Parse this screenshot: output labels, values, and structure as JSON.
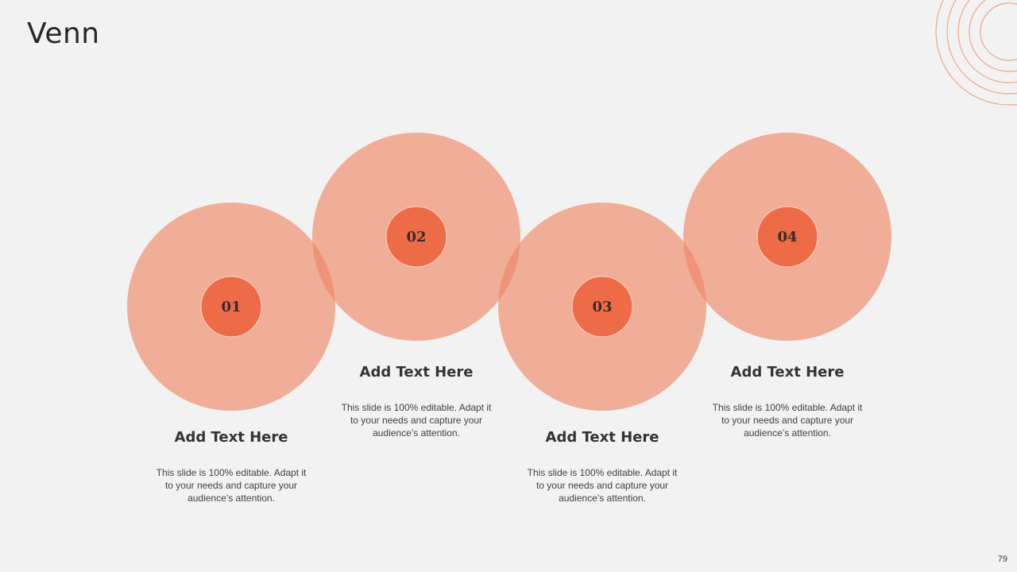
{
  "title": "Venn",
  "page_number": "79",
  "colors": {
    "background": "#f2f2f2",
    "outer_circle": "#f0ae98",
    "overlap": "#ef9478",
    "inner_circle": "#ee6b48",
    "decor_ring": "#f2a488"
  },
  "items": [
    {
      "number": "01",
      "heading": "Add Text Here",
      "body": "This slide is 100% editable. Adapt it to your needs and capture your audience’s attention."
    },
    {
      "number": "02",
      "heading": "Add Text Here",
      "body": "This slide is 100% editable. Adapt it to your needs and capture your audience’s attention."
    },
    {
      "number": "03",
      "heading": "Add Text Here",
      "body": "This slide is 100% editable. Adapt it to your needs and capture your audience’s attention."
    },
    {
      "number": "04",
      "heading": "Add Text Here",
      "body": "This slide is 100% editable. Adapt it to your needs and capture your audience’s attention."
    }
  ]
}
